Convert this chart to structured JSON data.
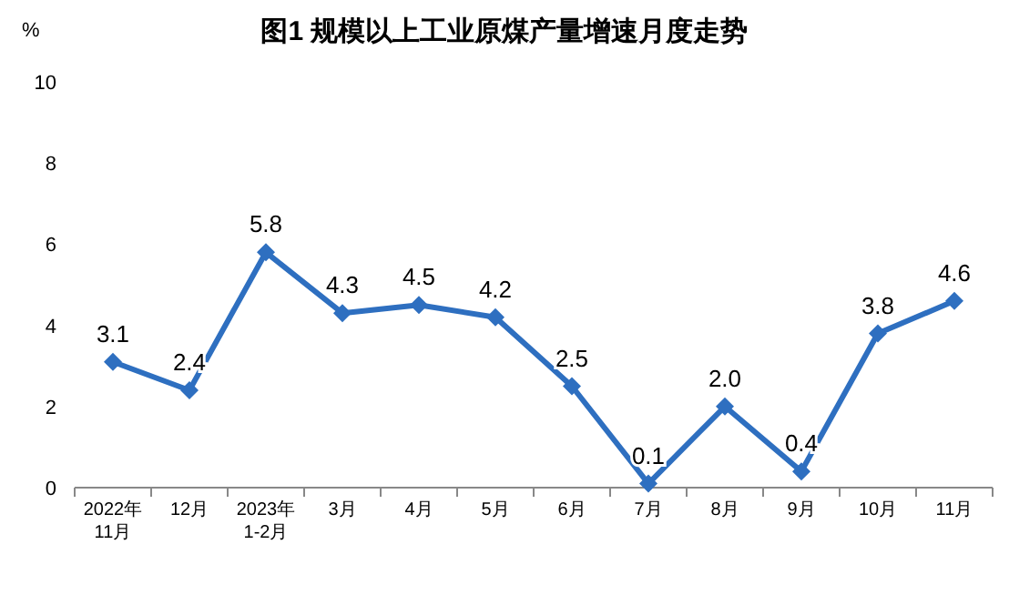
{
  "chart_data": {
    "type": "line",
    "title": "图1  规模以上工业原煤产量增速月度走势",
    "ylabel": "%",
    "categories": [
      "2022年\n11月",
      "12月",
      "2023年\n1-2月",
      "3月",
      "4月",
      "5月",
      "6月",
      "7月",
      "8月",
      "9月",
      "10月",
      "11月"
    ],
    "series": [
      {
        "color": "#2e6fc0",
        "values": [
          3.1,
          2.4,
          5.8,
          4.3,
          4.5,
          4.2,
          2.5,
          0.1,
          2.0,
          0.4,
          3.8,
          4.6
        ],
        "value_labels": [
          "3.1",
          "2.4",
          "5.8",
          "4.3",
          "4.5",
          "4.2",
          "2.5",
          "0.1",
          "2.0",
          "0.4",
          "3.8",
          "4.6"
        ]
      }
    ],
    "ylim": [
      0,
      10
    ],
    "yticks": [
      0,
      2,
      4,
      6,
      8,
      10
    ],
    "marker": "diamond",
    "line_style": "solid"
  }
}
